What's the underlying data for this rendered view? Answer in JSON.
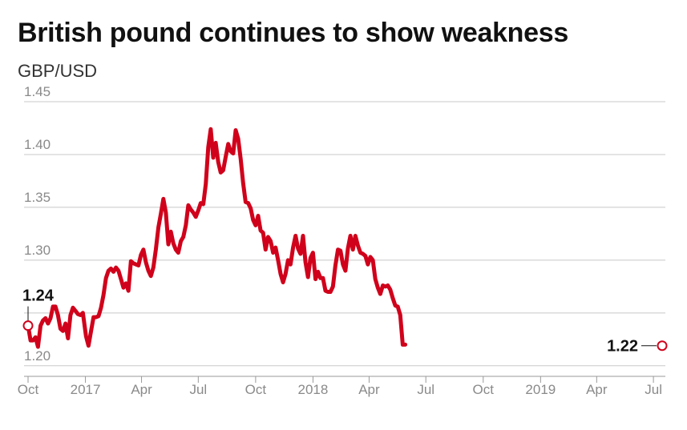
{
  "title": "British pound continues to show weakness",
  "subtitle": "GBP/USD",
  "colors": {
    "line": "#d0021b",
    "grid": "#c8c8c8",
    "axis": "#999999",
    "tick_text": "#8a8a8a"
  },
  "chart_data": {
    "type": "line",
    "title": "British pound continues to show weakness",
    "ylabel": "GBP/USD",
    "xlabel": "",
    "ylim": [
      1.19,
      1.45
    ],
    "xlim": [
      "2016-10-01",
      "2019-07-15"
    ],
    "yticks": [
      1.2,
      1.25,
      1.3,
      1.35,
      1.4,
      1.45
    ],
    "ytick_labels": [
      "1.20",
      "",
      "1.30",
      "1.35",
      "1.40",
      "1.45"
    ],
    "xticks": [
      "2016-10-01",
      "2017-01-01",
      "2017-04-01",
      "2017-07-01",
      "2017-10-01",
      "2018-01-01",
      "2018-04-01",
      "2018-07-01",
      "2018-10-01",
      "2019-01-01",
      "2019-04-01",
      "2019-07-01"
    ],
    "xtick_labels": [
      "Oct",
      "2017",
      "Apr",
      "Jul",
      "Oct",
      "2018",
      "Apr",
      "Jul",
      "Oct",
      "2019",
      "Apr",
      "Jul"
    ],
    "grid": true,
    "series": [
      {
        "values": [
          [
            "2016-10-01",
            1.238
          ],
          [
            "2016-10-05",
            1.224
          ],
          [
            "2016-10-09",
            1.224
          ],
          [
            "2016-10-13",
            1.227
          ],
          [
            "2016-10-17",
            1.218
          ],
          [
            "2016-10-21",
            1.238
          ],
          [
            "2016-10-25",
            1.243
          ],
          [
            "2016-10-29",
            1.245
          ],
          [
            "2016-11-02",
            1.24
          ],
          [
            "2016-11-06",
            1.245
          ],
          [
            "2016-11-10",
            1.256
          ],
          [
            "2016-11-14",
            1.256
          ],
          [
            "2016-11-18",
            1.248
          ],
          [
            "2016-11-22",
            1.235
          ],
          [
            "2016-11-26",
            1.233
          ],
          [
            "2016-11-30",
            1.24
          ],
          [
            "2016-12-04",
            1.226
          ],
          [
            "2016-12-08",
            1.248
          ],
          [
            "2016-12-12",
            1.255
          ],
          [
            "2016-12-16",
            1.252
          ],
          [
            "2016-12-20",
            1.249
          ],
          [
            "2016-12-24",
            1.248
          ],
          [
            "2016-12-28",
            1.25
          ],
          [
            "2017-01-02",
            1.228
          ],
          [
            "2017-01-06",
            1.219
          ],
          [
            "2017-01-10",
            1.233
          ],
          [
            "2017-01-14",
            1.246
          ],
          [
            "2017-01-18",
            1.246
          ],
          [
            "2017-01-22",
            1.247
          ],
          [
            "2017-01-26",
            1.255
          ],
          [
            "2017-01-30",
            1.267
          ],
          [
            "2017-02-03",
            1.283
          ],
          [
            "2017-02-07",
            1.29
          ],
          [
            "2017-02-11",
            1.292
          ],
          [
            "2017-02-15",
            1.289
          ],
          [
            "2017-02-19",
            1.293
          ],
          [
            "2017-02-23",
            1.29
          ],
          [
            "2017-02-27",
            1.282
          ],
          [
            "2017-03-03",
            1.274
          ],
          [
            "2017-03-07",
            1.278
          ],
          [
            "2017-03-11",
            1.271
          ],
          [
            "2017-03-15",
            1.299
          ],
          [
            "2017-03-19",
            1.297
          ],
          [
            "2017-03-23",
            1.296
          ],
          [
            "2017-03-27",
            1.295
          ],
          [
            "2017-03-31",
            1.305
          ],
          [
            "2017-04-04",
            1.31
          ],
          [
            "2017-04-08",
            1.298
          ],
          [
            "2017-04-12",
            1.29
          ],
          [
            "2017-04-16",
            1.285
          ],
          [
            "2017-04-20",
            1.293
          ],
          [
            "2017-04-24",
            1.31
          ],
          [
            "2017-04-28",
            1.331
          ],
          [
            "2017-05-02",
            1.344
          ],
          [
            "2017-05-06",
            1.358
          ],
          [
            "2017-05-10",
            1.345
          ],
          [
            "2017-05-14",
            1.315
          ],
          [
            "2017-05-18",
            1.327
          ],
          [
            "2017-05-22",
            1.316
          ],
          [
            "2017-05-26",
            1.31
          ],
          [
            "2017-05-30",
            1.307
          ],
          [
            "2017-06-03",
            1.318
          ],
          [
            "2017-06-07",
            1.322
          ],
          [
            "2017-06-11",
            1.333
          ],
          [
            "2017-06-15",
            1.352
          ],
          [
            "2017-06-19",
            1.348
          ],
          [
            "2017-06-23",
            1.345
          ],
          [
            "2017-06-27",
            1.341
          ],
          [
            "2017-07-01",
            1.347
          ],
          [
            "2017-07-05",
            1.354
          ],
          [
            "2017-07-09",
            1.353
          ],
          [
            "2017-07-13",
            1.372
          ],
          [
            "2017-07-17",
            1.407
          ],
          [
            "2017-07-21",
            1.424
          ],
          [
            "2017-07-25",
            1.397
          ],
          [
            "2017-07-29",
            1.411
          ],
          [
            "2017-08-02",
            1.393
          ],
          [
            "2017-08-06",
            1.383
          ],
          [
            "2017-08-10",
            1.385
          ],
          [
            "2017-08-14",
            1.398
          ],
          [
            "2017-08-18",
            1.41
          ],
          [
            "2017-08-22",
            1.403
          ],
          [
            "2017-08-26",
            1.401
          ],
          [
            "2017-08-30",
            1.423
          ],
          [
            "2017-09-03",
            1.415
          ],
          [
            "2017-09-07",
            1.396
          ],
          [
            "2017-09-11",
            1.373
          ],
          [
            "2017-09-15",
            1.355
          ],
          [
            "2017-09-19",
            1.354
          ],
          [
            "2017-09-23",
            1.349
          ],
          [
            "2017-09-27",
            1.338
          ],
          [
            "2017-10-01",
            1.333
          ],
          [
            "2017-10-05",
            1.342
          ],
          [
            "2017-10-09",
            1.328
          ],
          [
            "2017-10-13",
            1.326
          ],
          [
            "2017-10-17",
            1.31
          ],
          [
            "2017-10-21",
            1.322
          ],
          [
            "2017-10-25",
            1.318
          ],
          [
            "2017-10-29",
            1.307
          ],
          [
            "2017-11-02",
            1.312
          ],
          [
            "2017-11-06",
            1.3
          ],
          [
            "2017-11-10",
            1.287
          ],
          [
            "2017-11-14",
            1.279
          ],
          [
            "2017-11-18",
            1.287
          ],
          [
            "2017-11-22",
            1.3
          ],
          [
            "2017-11-26",
            1.296
          ],
          [
            "2017-11-30",
            1.312
          ],
          [
            "2017-12-04",
            1.323
          ],
          [
            "2017-12-08",
            1.311
          ],
          [
            "2017-12-12",
            1.306
          ],
          [
            "2017-12-16",
            1.323
          ],
          [
            "2017-12-20",
            1.298
          ],
          [
            "2017-12-24",
            1.284
          ],
          [
            "2017-12-28",
            1.302
          ],
          [
            "2018-01-01",
            1.307
          ],
          [
            "2018-01-05",
            1.282
          ],
          [
            "2018-01-09",
            1.289
          ],
          [
            "2018-01-13",
            1.283
          ],
          [
            "2018-01-17",
            1.283
          ],
          [
            "2018-01-21",
            1.271
          ],
          [
            "2018-01-25",
            1.27
          ],
          [
            "2018-01-29",
            1.27
          ],
          [
            "2018-02-02",
            1.275
          ],
          [
            "2018-02-06",
            1.295
          ],
          [
            "2018-02-10",
            1.31
          ],
          [
            "2018-02-14",
            1.309
          ],
          [
            "2018-02-18",
            1.296
          ],
          [
            "2018-02-22",
            1.29
          ],
          [
            "2018-02-26",
            1.311
          ],
          [
            "2018-03-02",
            1.323
          ],
          [
            "2018-03-06",
            1.31
          ],
          [
            "2018-03-10",
            1.323
          ],
          [
            "2018-03-14",
            1.314
          ],
          [
            "2018-03-18",
            1.307
          ],
          [
            "2018-03-22",
            1.306
          ],
          [
            "2018-03-26",
            1.304
          ],
          [
            "2018-03-30",
            1.296
          ],
          [
            "2018-04-03",
            1.303
          ],
          [
            "2018-04-07",
            1.3
          ],
          [
            "2018-04-11",
            1.282
          ],
          [
            "2018-04-15",
            1.274
          ],
          [
            "2018-04-19",
            1.268
          ],
          [
            "2018-04-23",
            1.276
          ],
          [
            "2018-04-27",
            1.275
          ],
          [
            "2018-05-01",
            1.276
          ],
          [
            "2018-05-05",
            1.272
          ],
          [
            "2018-05-09",
            1.264
          ],
          [
            "2018-05-13",
            1.257
          ],
          [
            "2018-05-17",
            1.256
          ],
          [
            "2018-05-21",
            1.248
          ],
          [
            "2018-05-25",
            1.22
          ],
          [
            "2018-05-29",
            1.22
          ]
        ]
      }
    ],
    "annotations": [
      {
        "label": "1.24",
        "x": "2016-10-01",
        "y": 1.238,
        "position": "above"
      },
      {
        "label": "1.22",
        "x": "2019-07-15",
        "y": 1.219,
        "position": "left"
      }
    ]
  }
}
